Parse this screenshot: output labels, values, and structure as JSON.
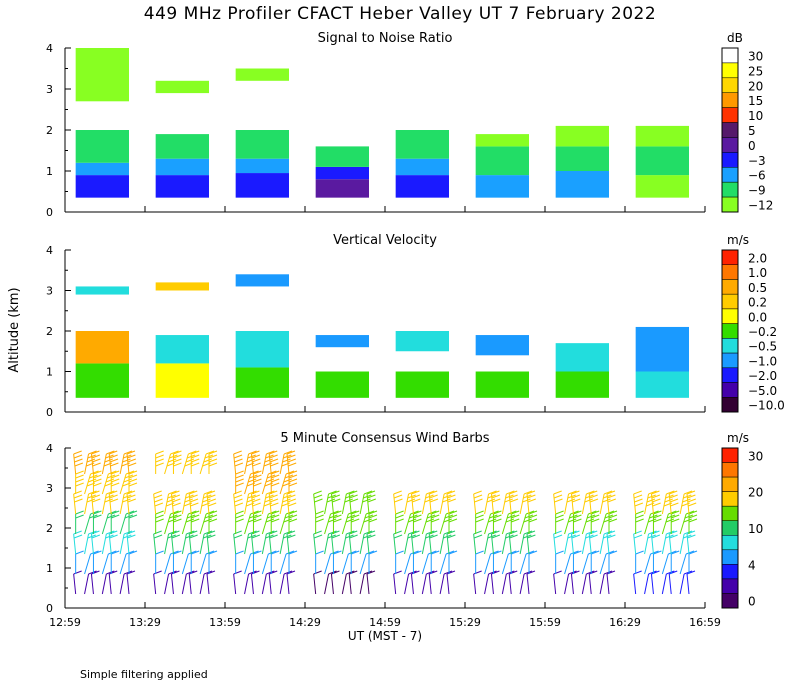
{
  "figure": {
    "title": "449 MHz Profiler CFACT Heber Valley UT  7 February 2022",
    "footnote": "Simple filtering applied",
    "ylabel": "Altitude (km)",
    "xlabel": "UT  (MST - 7)",
    "x_ticks": [
      "12:59",
      "13:29",
      "13:59",
      "14:29",
      "14:59",
      "15:29",
      "15:59",
      "16:29",
      "16:59"
    ],
    "y_ticks": [
      "0",
      "1",
      "2",
      "3",
      "4"
    ]
  },
  "chart_data": [
    {
      "type": "heatmap",
      "title": "Signal to Noise Ratio",
      "colorbar_unit": "dB",
      "colorbar_labels": [
        "30",
        "25",
        "20",
        "15",
        "10",
        "5",
        "0",
        "−3",
        "−6",
        "−9",
        "−12"
      ],
      "colors": [
        "#ffffff",
        "#ffff00",
        "#ffd700",
        "#ff9900",
        "#ff3300",
        "#551a6b",
        "#5a1aa0",
        "#1a1aff",
        "#1aa0ff",
        "#22dd66",
        "#88ff22"
      ],
      "xlim": [
        "12:59",
        "16:59"
      ],
      "ylim": [
        0,
        4
      ],
      "segments": [
        {
          "start": "13:03",
          "end": "13:23",
          "layers": [
            {
              "from": 0.35,
              "to": 0.9,
              "level": -3
            },
            {
              "from": 0.9,
              "to": 1.2,
              "level": -6
            },
            {
              "from": 1.2,
              "to": 2.0,
              "level": -9
            },
            {
              "from": 2.7,
              "to": 4.0,
              "level": -12
            }
          ]
        },
        {
          "start": "13:33",
          "end": "13:53",
          "layers": [
            {
              "from": 0.35,
              "to": 0.9,
              "level": -3
            },
            {
              "from": 0.9,
              "to": 1.3,
              "level": -6
            },
            {
              "from": 1.3,
              "to": 1.9,
              "level": -9
            },
            {
              "from": 2.9,
              "to": 3.2,
              "level": -12
            }
          ]
        },
        {
          "start": "14:03",
          "end": "14:23",
          "layers": [
            {
              "from": 0.35,
              "to": 0.95,
              "level": -3
            },
            {
              "from": 0.95,
              "to": 1.3,
              "level": -6
            },
            {
              "from": 1.3,
              "to": 2.0,
              "level": -9
            },
            {
              "from": 3.2,
              "to": 3.5,
              "level": -12
            }
          ]
        },
        {
          "start": "14:33",
          "end": "14:53",
          "layers": [
            {
              "from": 0.35,
              "to": 0.8,
              "level": 0
            },
            {
              "from": 0.8,
              "to": 1.1,
              "level": -3
            },
            {
              "from": 1.1,
              "to": 1.6,
              "level": -9
            }
          ]
        },
        {
          "start": "15:03",
          "end": "15:23",
          "layers": [
            {
              "from": 0.35,
              "to": 0.9,
              "level": -3
            },
            {
              "from": 0.9,
              "to": 1.3,
              "level": -6
            },
            {
              "from": 1.3,
              "to": 2.0,
              "level": -9
            }
          ]
        },
        {
          "start": "15:33",
          "end": "15:53",
          "layers": [
            {
              "from": 0.35,
              "to": 0.9,
              "level": -6
            },
            {
              "from": 0.9,
              "to": 1.6,
              "level": -9
            },
            {
              "from": 1.6,
              "to": 1.9,
              "level": -12
            }
          ]
        },
        {
          "start": "16:03",
          "end": "16:23",
          "layers": [
            {
              "from": 0.35,
              "to": 1.0,
              "level": -6
            },
            {
              "from": 1.0,
              "to": 1.6,
              "level": -9
            },
            {
              "from": 1.6,
              "to": 2.1,
              "level": -12
            }
          ]
        },
        {
          "start": "16:33",
          "end": "16:53",
          "layers": [
            {
              "from": 0.35,
              "to": 0.9,
              "level": -12
            },
            {
              "from": 0.9,
              "to": 1.6,
              "level": -9
            },
            {
              "from": 1.6,
              "to": 2.1,
              "level": -12
            }
          ]
        }
      ]
    },
    {
      "type": "heatmap",
      "title": "Vertical Velocity",
      "colorbar_unit": "m/s",
      "colorbar_labels": [
        "2.0",
        "1.0",
        "0.5",
        "0.2",
        "0.0",
        "−0.2",
        "−0.5",
        "−1.0",
        "−2.0",
        "−5.0",
        "−10.0"
      ],
      "colors": [
        "#ff2200",
        "#ff7700",
        "#ffaa00",
        "#ffcc00",
        "#ffff00",
        "#33dd00",
        "#22dddd",
        "#1a9aff",
        "#1a1aff",
        "#4400aa",
        "#330033"
      ],
      "xlim": [
        "12:59",
        "16:59"
      ],
      "ylim": [
        0,
        4
      ],
      "segments": [
        {
          "start": "13:03",
          "end": "13:23",
          "layers": [
            {
              "from": 0.35,
              "to": 1.2,
              "level": -0.2
            },
            {
              "from": 1.2,
              "to": 2.0,
              "level": 0.5
            },
            {
              "from": 2.9,
              "to": 3.1,
              "level": -0.5
            }
          ]
        },
        {
          "start": "13:33",
          "end": "13:53",
          "layers": [
            {
              "from": 0.35,
              "to": 1.2,
              "level": 0.0
            },
            {
              "from": 1.2,
              "to": 1.9,
              "level": -0.5
            },
            {
              "from": 3.0,
              "to": 3.2,
              "level": 0.2
            }
          ]
        },
        {
          "start": "14:03",
          "end": "14:23",
          "layers": [
            {
              "from": 0.35,
              "to": 1.1,
              "level": -0.2
            },
            {
              "from": 1.1,
              "to": 2.0,
              "level": -0.5
            },
            {
              "from": 3.1,
              "to": 3.4,
              "level": -1.0
            }
          ]
        },
        {
          "start": "14:33",
          "end": "14:53",
          "layers": [
            {
              "from": 0.35,
              "to": 1.0,
              "level": -0.2
            },
            {
              "from": 1.6,
              "to": 1.9,
              "level": -1.0
            }
          ]
        },
        {
          "start": "15:03",
          "end": "15:23",
          "layers": [
            {
              "from": 0.35,
              "to": 1.0,
              "level": -0.2
            },
            {
              "from": 1.5,
              "to": 2.0,
              "level": -0.5
            }
          ]
        },
        {
          "start": "15:33",
          "end": "15:53",
          "layers": [
            {
              "from": 0.35,
              "to": 1.0,
              "level": -0.2
            },
            {
              "from": 1.4,
              "to": 1.9,
              "level": -1.0
            }
          ]
        },
        {
          "start": "16:03",
          "end": "16:23",
          "layers": [
            {
              "from": 0.35,
              "to": 1.0,
              "level": -0.2
            },
            {
              "from": 1.0,
              "to": 1.7,
              "level": -0.5
            }
          ]
        },
        {
          "start": "16:33",
          "end": "16:53",
          "layers": [
            {
              "from": 0.35,
              "to": 1.0,
              "level": -0.5
            },
            {
              "from": 1.0,
              "to": 2.1,
              "level": -1.0
            }
          ]
        }
      ]
    },
    {
      "type": "wind_barbs",
      "title": "5 Minute Consensus Wind Barbs",
      "colorbar_unit": "m/s",
      "colorbar_labels": [
        "30",
        "20",
        "10",
        "4",
        "0"
      ],
      "colors": [
        "#ff2200",
        "#ff7700",
        "#ffaa00",
        "#ffcc00",
        "#66dd00",
        "#22cc66",
        "#22dddd",
        "#1a9aff",
        "#1a1aff",
        "#4400aa",
        "#440066"
      ],
      "xlim": [
        "12:59",
        "16:59"
      ],
      "ylim": [
        0,
        4
      ],
      "profiles": [
        {
          "start": "13:03",
          "end": "13:23",
          "altitudes": [
            0.5,
            1.0,
            1.5,
            2.0,
            2.5,
            3.0,
            3.5
          ],
          "speeds": [
            2,
            6,
            9,
            12,
            17,
            18,
            20
          ]
        },
        {
          "start": "13:33",
          "end": "13:53",
          "altitudes": [
            0.5,
            1.0,
            1.5,
            2.0,
            2.5,
            3.5
          ],
          "speeds": [
            2,
            6,
            10,
            13,
            18,
            19
          ]
        },
        {
          "start": "14:03",
          "end": "14:23",
          "altitudes": [
            0.5,
            1.0,
            1.5,
            2.0,
            2.5,
            3.0,
            3.5
          ],
          "speeds": [
            2,
            7,
            10,
            14,
            19,
            21,
            22
          ]
        },
        {
          "start": "14:33",
          "end": "14:53",
          "altitudes": [
            0.5,
            1.0,
            1.5,
            2.0,
            2.5
          ],
          "speeds": [
            1,
            6,
            10,
            13,
            16
          ]
        },
        {
          "start": "15:03",
          "end": "15:23",
          "altitudes": [
            0.5,
            1.0,
            1.5,
            2.0,
            2.5
          ],
          "speeds": [
            2,
            7,
            10,
            13,
            17
          ]
        },
        {
          "start": "15:33",
          "end": "15:53",
          "altitudes": [
            0.5,
            1.0,
            1.5,
            2.0,
            2.5
          ],
          "speeds": [
            2,
            6,
            10,
            13,
            17
          ]
        },
        {
          "start": "16:03",
          "end": "16:23",
          "altitudes": [
            0.5,
            1.0,
            1.5,
            2.0,
            2.5
          ],
          "speeds": [
            2,
            6,
            9,
            13,
            17
          ]
        },
        {
          "start": "16:33",
          "end": "16:53",
          "altitudes": [
            0.5,
            1.0,
            1.5,
            2.0,
            2.5
          ],
          "speeds": [
            3,
            6,
            9,
            13,
            18
          ]
        }
      ]
    }
  ]
}
